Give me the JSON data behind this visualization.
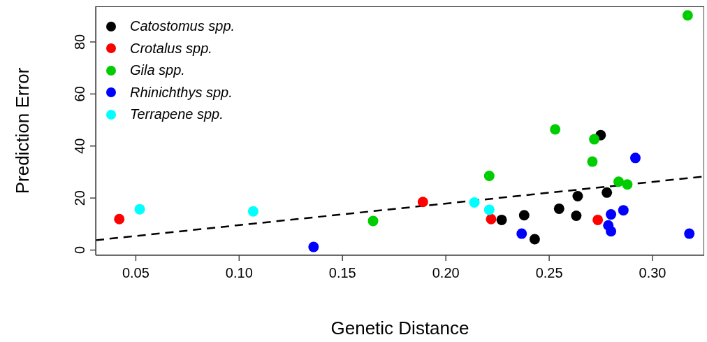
{
  "chart_data": {
    "type": "scatter",
    "xlabel": "Genetic Distance",
    "ylabel": "Prediction Error",
    "xlim": [
      0.0306,
      0.325
    ],
    "ylim": [
      -2.0,
      93.7
    ],
    "xticks": [
      {
        "value": 0.05,
        "label": "0.05"
      },
      {
        "value": 0.1,
        "label": "0.10"
      },
      {
        "value": 0.15,
        "label": "0.15"
      },
      {
        "value": 0.2,
        "label": "0.20"
      },
      {
        "value": 0.25,
        "label": "0.25"
      },
      {
        "value": 0.3,
        "label": "0.30"
      }
    ],
    "yticks": [
      0,
      20,
      40,
      60,
      80
    ],
    "grid": false,
    "legend": "top left",
    "marker": "circle",
    "series": [
      {
        "name": "Catostomus spp.",
        "color": "#000000",
        "x": [
          0.2749,
          0.2779,
          0.2638,
          0.2548,
          0.2379,
          0.2631,
          0.227,
          0.243
        ],
        "values": [
          44.2,
          22.1,
          20.7,
          15.9,
          13.4,
          13.2,
          11.6,
          4.2
        ]
      },
      {
        "name": "Crotalus spp.",
        "color": "#ff0000",
        "x": [
          0.042,
          0.1889,
          0.2219,
          0.2735
        ],
        "values": [
          11.9,
          18.5,
          11.9,
          11.6
        ]
      },
      {
        "name": "Gila spp.",
        "color": "#00cd00",
        "x": [
          0.1648,
          0.2529,
          0.2718,
          0.2709,
          0.221,
          0.2836,
          0.2878,
          0.317
        ],
        "values": [
          11.2,
          46.4,
          42.6,
          34.0,
          28.5,
          26.3,
          25.2,
          90.2
        ]
      },
      {
        "name": "Rhinichthys spp.",
        "color": "#0000ff",
        "x": [
          0.136,
          0.2917,
          0.2859,
          0.2799,
          0.2786,
          0.2799,
          0.2367,
          0.3178
        ],
        "values": [
          1.2,
          35.4,
          15.3,
          13.7,
          9.5,
          7.2,
          6.3,
          6.3
        ]
      },
      {
        "name": "Terrapene spp.",
        "color": "#00ffff",
        "x": [
          0.0519,
          0.1068,
          0.2138,
          0.221
        ],
        "values": [
          15.7,
          14.9,
          18.3,
          15.5
        ]
      },
      {
        "type": "line",
        "color": "#000000",
        "line_style": "dashed",
        "marker": "none",
        "x": [
          0.0306,
          0.325
        ],
        "values": [
          3.8,
          28.3
        ]
      }
    ]
  }
}
